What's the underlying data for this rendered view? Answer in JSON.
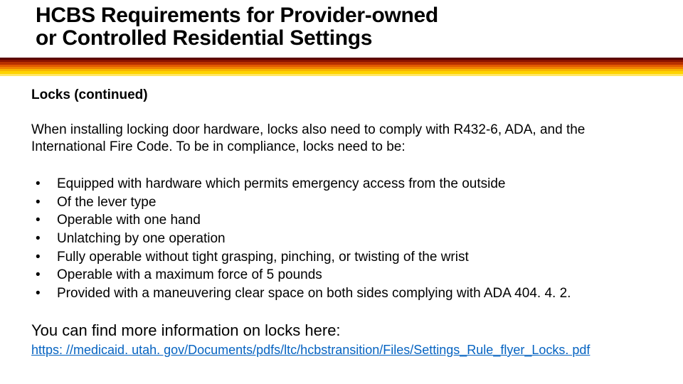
{
  "title_line1": "HCBS Requirements for Provider-owned",
  "title_line2": "or Controlled Residential Settings",
  "stripe_colors": [
    "#5a0000",
    "#8a1300",
    "#b83000",
    "#e25a00",
    "#f08200",
    "#f8b400",
    "#ffd400",
    "#ffe766"
  ],
  "subheading": "Locks (continued)",
  "intro": "When installing locking door hardware, locks also need to comply with R432-6, ADA, and the International Fire Code.  To be in compliance, locks need to be:",
  "bullets": [
    "Equipped with hardware which permits emergency access from the outside",
    "Of the lever type",
    "Operable with one hand",
    "Unlatching by one operation",
    "Fully operable without tight grasping, pinching, or twisting of the wrist",
    "Operable with a maximum force of 5 pounds",
    "Provided with a maneuvering clear space on both sides complying with ADA 404. 4. 2."
  ],
  "outro": "You can find more information on locks here:",
  "link_text": "https: //medicaid. utah. gov/Documents/pdfs/ltc/hcbstransition/Files/Settings_Rule_flyer_Locks. pdf",
  "text_color": "#000000",
  "link_color": "#0563c1",
  "background_color": "#ffffff"
}
